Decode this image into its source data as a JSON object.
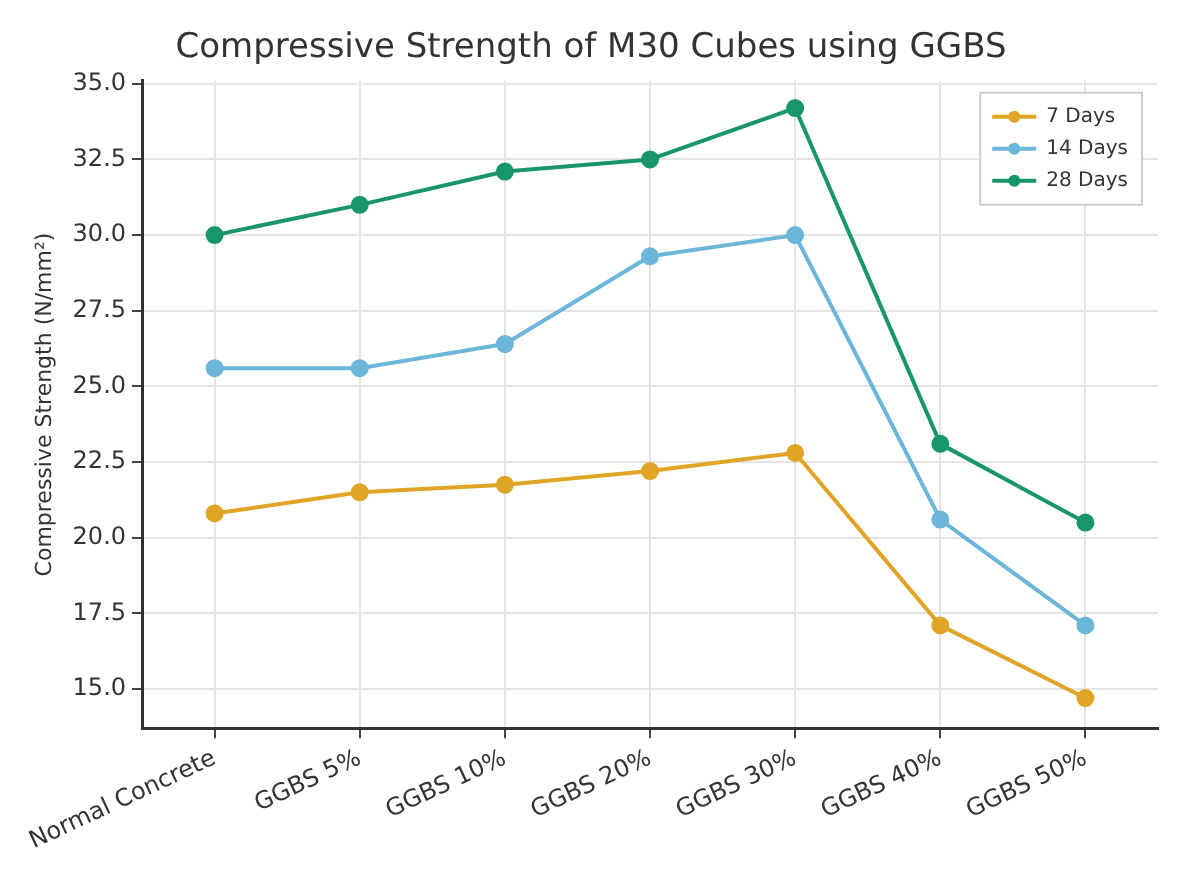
{
  "chart_data": {
    "type": "line",
    "title": "Compressive Strength of M30 Cubes using GGBS",
    "ylabel": "Compressive Strength (N/mm²)",
    "categories": [
      "Normal Concrete",
      "GGBS 5%",
      "GGBS 10%",
      "GGBS 20%",
      "GGBS 30%",
      "GGBS 40%",
      "GGBS 50%"
    ],
    "series": [
      {
        "name": "7 Days",
        "color": "#e0a526",
        "values": [
          20.8,
          21.5,
          21.75,
          22.2,
          22.8,
          17.1,
          14.7
        ]
      },
      {
        "name": "14 Days",
        "color": "#6cb6d9",
        "values": [
          25.6,
          25.6,
          26.4,
          29.3,
          30.0,
          20.6,
          17.1
        ]
      },
      {
        "name": "28 Days",
        "color": "#18966a",
        "values": [
          30.0,
          31.0,
          32.1,
          32.5,
          34.2,
          23.1,
          20.5
        ]
      }
    ],
    "ylim": [
      13.7,
      35.1
    ],
    "yticks": [
      {
        "value": 15,
        "label": "15.0"
      },
      {
        "value": 17.5,
        "label": "17.5"
      },
      {
        "value": 20,
        "label": "20.0"
      },
      {
        "value": 22.5,
        "label": "22.5"
      },
      {
        "value": 25,
        "label": "25.0"
      },
      {
        "value": 27.5,
        "label": "27.5"
      },
      {
        "value": 30,
        "label": "30.0"
      },
      {
        "value": 32.5,
        "label": "32.5"
      },
      {
        "value": 35,
        "label": "35.0"
      }
    ],
    "grid": true,
    "legend": "top right",
    "marker": "circle",
    "line_style": "solid"
  }
}
